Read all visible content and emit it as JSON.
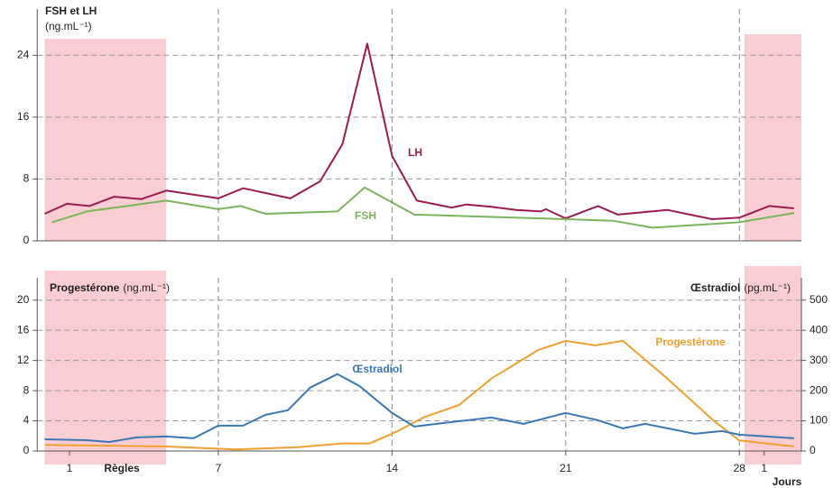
{
  "shaded_x": [
    [
      0,
      4.9
    ],
    [
      28.2,
      30.5
    ]
  ],
  "chart_data": [
    {
      "type": "line",
      "y_label": "FSH et LH",
      "y_unit": "(ng.mL⁻¹)",
      "ylim": [
        0,
        28
      ],
      "yticks": [
        0,
        8,
        16,
        24
      ],
      "xlim": [
        -0.3,
        30.5
      ],
      "xgrid": [
        7,
        14,
        21,
        28
      ],
      "grid": true,
      "series": [
        {
          "name": "LH",
          "color": "#9b1b50",
          "x": [
            0.0,
            0.9,
            1.8,
            2.8,
            3.9,
            4.9,
            7,
            8,
            9.9,
            11.1,
            12,
            13,
            14,
            15,
            16.4,
            17,
            18,
            19,
            20,
            20.2,
            21,
            22.3,
            23.1,
            25.1,
            26.9,
            28,
            29.2,
            30.2
          ],
          "values": [
            3.5,
            4.8,
            4.5,
            5.7,
            5.4,
            6.5,
            5.5,
            6.8,
            5.5,
            7.7,
            12.5,
            25.5,
            11,
            5.2,
            4.3,
            4.7,
            4.4,
            4.0,
            3.8,
            4.1,
            2.9,
            4.5,
            3.4,
            4.0,
            2.8,
            3.0,
            4.5,
            4.2
          ]
        },
        {
          "name": "FSH",
          "color": "#7ab55c",
          "x": [
            0.3,
            1.7,
            4.9,
            7,
            7.9,
            8.9,
            11.8,
            12.9,
            14.9,
            20,
            22.9,
            24.5,
            28,
            30.2
          ],
          "values": [
            2.4,
            3.8,
            5.2,
            4.1,
            4.5,
            3.5,
            3.8,
            6.9,
            3.4,
            2.9,
            2.6,
            1.7,
            2.4,
            3.6
          ]
        }
      ]
    },
    {
      "type": "line",
      "y_label": "Progestérone",
      "y_unit": "(ng.mL⁻¹)",
      "y2_label": "Œstradiol",
      "y2_unit": "(pg.mL⁻¹)",
      "ylim": [
        0,
        22
      ],
      "yticks": [
        0,
        4,
        8,
        12,
        16,
        20
      ],
      "y2lim": [
        0,
        550
      ],
      "y2ticks": [
        0,
        100,
        200,
        300,
        400,
        500
      ],
      "xlim": [
        -0.3,
        30.5
      ],
      "xticks": [
        1,
        7,
        14,
        21,
        28,
        {
          "value": 29,
          "label": "1"
        }
      ],
      "x_label": "Jours",
      "annotation": "Règles",
      "grid": true,
      "series": [
        {
          "name": "Progestérone",
          "color": "#f0a030",
          "x": [
            0,
            4.9,
            7.7,
            10.2,
            12,
            13.1,
            14.2,
            15.3,
            16.7,
            18,
            19.9,
            21,
            22.2,
            23.3,
            25.1,
            26.9,
            28,
            30.2
          ],
          "values": [
            0.8,
            0.6,
            0.2,
            0.5,
            1.0,
            1.0,
            2.6,
            4.5,
            6.1,
            9.6,
            13.4,
            14.6,
            14.0,
            14.6,
            9.6,
            4.2,
            1.4,
            0.6
          ]
        },
        {
          "name": "Œstradiol",
          "color": "#3a78b5",
          "axis": "y2",
          "x": [
            0,
            1.7,
            2.6,
            3.7,
            4.9,
            6,
            7,
            8,
            8.9,
            9.8,
            10.7,
            11.8,
            12.7,
            14,
            14.9,
            16.4,
            18,
            19.3,
            21,
            22.3,
            23.3,
            24.2,
            26.2,
            27.3,
            28,
            30.2
          ],
          "values": [
            39,
            36,
            30,
            45,
            48,
            42,
            84,
            84,
            120,
            135,
            210,
            255,
            215,
            126,
            81,
            96,
            111,
            90,
            126,
            102,
            75,
            90,
            57,
            66,
            54,
            42
          ]
        }
      ]
    }
  ]
}
